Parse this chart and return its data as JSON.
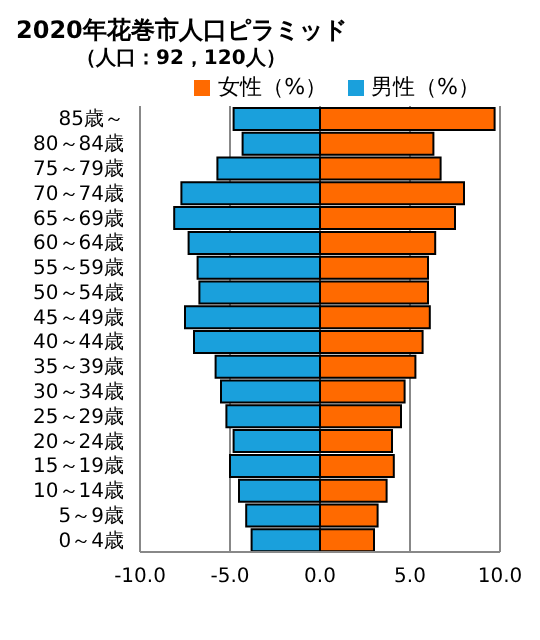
{
  "chart_data": {
    "type": "bar",
    "orientation": "horizontal",
    "stacked": true,
    "title": "2020年花巻市人口ピラミッド",
    "subtitle": "（人口：92，120人）",
    "categories": [
      "85歳～",
      "80～84歳",
      "75～79歳",
      "70～74歳",
      "65～69歳",
      "60～64歳",
      "55～59歳",
      "50～54歳",
      "45～49歳",
      "40～44歳",
      "35～39歳",
      "30～34歳",
      "25～29歳",
      "20～24歳",
      "15～19歳",
      "10～14歳",
      "5～9歳",
      "0～4歳"
    ],
    "series": [
      {
        "name": "男性（%）",
        "color": "#1aa0dc",
        "values": [
          -4.8,
          -4.3,
          -5.7,
          -7.7,
          -8.1,
          -7.3,
          -6.8,
          -6.7,
          -7.5,
          -7.0,
          -5.8,
          -5.5,
          -5.2,
          -4.8,
          -5.0,
          -4.5,
          -4.1,
          -3.8
        ]
      },
      {
        "name": "女性（%）",
        "color": "#ff6a00",
        "values": [
          9.7,
          6.3,
          6.7,
          8.0,
          7.5,
          6.4,
          6.0,
          6.0,
          6.1,
          5.7,
          5.3,
          4.7,
          4.5,
          4.0,
          4.1,
          3.7,
          3.2,
          3.0
        ]
      }
    ],
    "xlim": [
      -10,
      10
    ],
    "xticks": [
      {
        "value": -10,
        "label": "-10.0"
      },
      {
        "value": -5,
        "label": "-5.0"
      },
      {
        "value": 0,
        "label": "0.0"
      },
      {
        "value": 5,
        "label": "5.0"
      },
      {
        "value": 10,
        "label": "10.0"
      }
    ],
    "grid": "x",
    "legend": "top right"
  }
}
